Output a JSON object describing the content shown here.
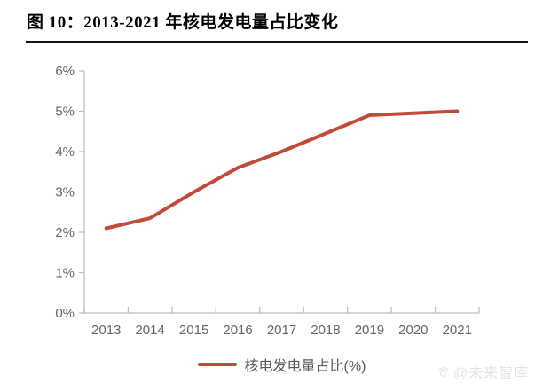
{
  "title": "图 10：2013-2021 年核电发电量占比变化",
  "legend": {
    "label": "核电发电量占比(%)"
  },
  "watermark": {
    "text": "@未来智库",
    "icon": "paw-icon"
  },
  "colors": {
    "line": "#C24A38",
    "axis": "#BFBFBF",
    "tick_label": "#666666",
    "legend_label": "#595959",
    "title_text": "#000000",
    "title_rule": "#111111",
    "watermark": "#E3E3E3"
  },
  "chart_data": {
    "type": "line",
    "title": "",
    "xlabel": "",
    "ylabel": "",
    "categories": [
      "2013",
      "2014",
      "2015",
      "2016",
      "2017",
      "2018",
      "2019",
      "2020",
      "2021"
    ],
    "series": [
      {
        "name": "核电发电量占比(%)",
        "values": [
          2.1,
          2.35,
          3.0,
          3.6,
          4.0,
          4.45,
          4.9,
          4.95,
          5.0
        ]
      }
    ],
    "ylim": [
      0,
      6
    ],
    "yticks": [
      {
        "v": 0,
        "label": "0%"
      },
      {
        "v": 1,
        "label": "1%"
      },
      {
        "v": 2,
        "label": "2%"
      },
      {
        "v": 3,
        "label": "3%"
      },
      {
        "v": 4,
        "label": "4%"
      },
      {
        "v": 5,
        "label": "5%"
      },
      {
        "v": 6,
        "label": "6%"
      }
    ],
    "grid": false,
    "legend_position": "bottom"
  }
}
